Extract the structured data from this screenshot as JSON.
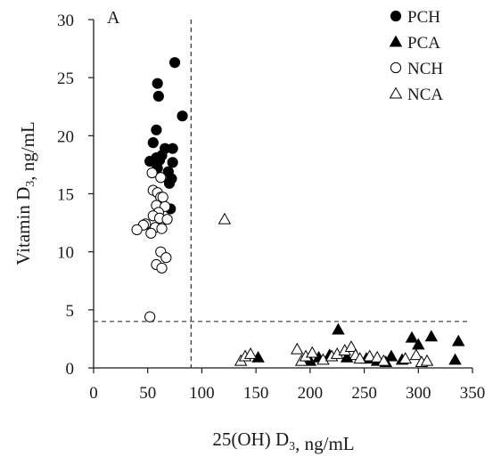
{
  "chart_data": {
    "type": "scatter",
    "panel_label": "A",
    "xlabel": "25(OH) D₃, ng/mL",
    "ylabel": "Vitamin D₃, ng/mL",
    "xlim": [
      0,
      350
    ],
    "ylim": [
      0,
      30
    ],
    "x_ticks": [
      0,
      50,
      100,
      150,
      200,
      250,
      300,
      350
    ],
    "y_ticks": [
      0,
      5,
      10,
      15,
      20,
      25,
      30
    ],
    "grid": false,
    "legend_position": "top-right",
    "reference_lines": [
      {
        "orientation": "vertical",
        "value": 90,
        "style": "dashed"
      },
      {
        "orientation": "horizontal",
        "value": 4,
        "style": "dashed"
      }
    ],
    "series": [
      {
        "name": "PCH",
        "marker": "circle-filled",
        "points": [
          [
            75,
            26.3
          ],
          [
            59,
            24.5
          ],
          [
            60,
            23.4
          ],
          [
            82,
            21.7
          ],
          [
            58,
            20.5
          ],
          [
            55,
            19.4
          ],
          [
            66,
            18.9
          ],
          [
            73,
            18.9
          ],
          [
            63,
            18.3
          ],
          [
            58,
            18.1
          ],
          [
            61,
            17.9
          ],
          [
            52,
            17.8
          ],
          [
            57,
            17.7
          ],
          [
            73,
            17.7
          ],
          [
            59,
            17.2
          ],
          [
            69,
            16.9
          ],
          [
            72,
            16.3
          ],
          [
            70,
            15.9
          ],
          [
            71,
            13.7
          ]
        ]
      },
      {
        "name": "PCA",
        "marker": "triangle-filled",
        "points": [
          [
            152,
            0.9
          ],
          [
            200,
            0.6
          ],
          [
            208,
            0.9
          ],
          [
            218,
            1.1
          ],
          [
            226,
            3.3
          ],
          [
            234,
            0.9
          ],
          [
            252,
            0.8
          ],
          [
            262,
            0.6
          ],
          [
            270,
            0.5
          ],
          [
            275,
            1.0
          ],
          [
            285,
            0.7
          ],
          [
            294,
            2.6
          ],
          [
            300,
            2.0
          ],
          [
            312,
            2.7
          ],
          [
            334,
            0.7
          ],
          [
            337,
            2.3
          ]
        ]
      },
      {
        "name": "NCH",
        "marker": "circle-open",
        "points": [
          [
            54,
            16.8
          ],
          [
            62,
            16.4
          ],
          [
            55,
            15.3
          ],
          [
            59,
            15.1
          ],
          [
            62,
            14.7
          ],
          [
            64,
            14.7
          ],
          [
            58,
            14.0
          ],
          [
            66,
            13.9
          ],
          [
            60,
            13.4
          ],
          [
            55,
            13.1
          ],
          [
            61,
            12.9
          ],
          [
            68,
            12.8
          ],
          [
            48,
            12.4
          ],
          [
            46,
            12.3
          ],
          [
            57,
            12.1
          ],
          [
            63,
            12.0
          ],
          [
            40,
            11.9
          ],
          [
            53,
            11.6
          ],
          [
            62,
            10.0
          ],
          [
            67,
            9.5
          ],
          [
            58,
            8.9
          ],
          [
            63,
            8.6
          ],
          [
            52,
            4.4
          ]
        ]
      },
      {
        "name": "NCA",
        "marker": "triangle-open",
        "points": [
          [
            121,
            12.8
          ],
          [
            136,
            0.6
          ],
          [
            140,
            1.0
          ],
          [
            145,
            1.2
          ],
          [
            188,
            1.6
          ],
          [
            192,
            0.6
          ],
          [
            196,
            1.0
          ],
          [
            202,
            1.3
          ],
          [
            212,
            0.7
          ],
          [
            220,
            1.0
          ],
          [
            225,
            1.2
          ],
          [
            232,
            1.5
          ],
          [
            238,
            1.8
          ],
          [
            242,
            1.1
          ],
          [
            246,
            0.8
          ],
          [
            255,
            1.0
          ],
          [
            262,
            0.9
          ],
          [
            268,
            0.6
          ],
          [
            288,
            0.8
          ],
          [
            298,
            1.1
          ],
          [
            303,
            0.5
          ],
          [
            308,
            0.6
          ]
        ]
      }
    ]
  }
}
